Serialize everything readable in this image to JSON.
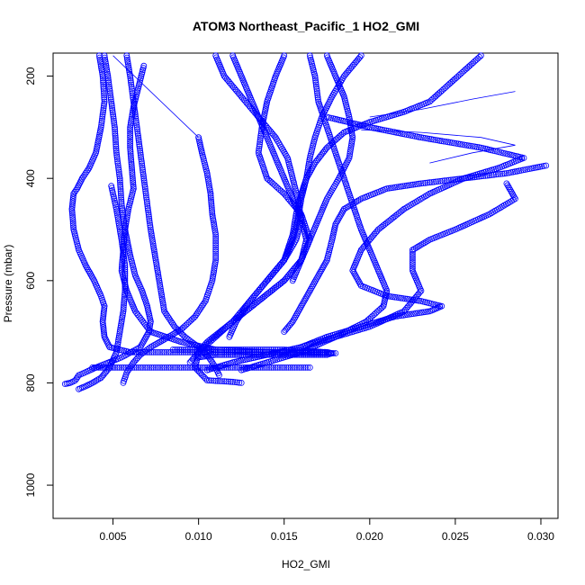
{
  "chart_data": {
    "type": "scatter",
    "title": "ATOM3 Northeast_Pacific_1 HO2_GMI",
    "xlabel": "HO2_GMI",
    "ylabel": "Pressure (mbar)",
    "xlim": [
      0.0015,
      0.031
    ],
    "ylim": [
      1065,
      155
    ],
    "y_reversed": true,
    "x_ticks": [
      {
        "value": 0.005,
        "label": "0.005"
      },
      {
        "value": 0.01,
        "label": "0.010"
      },
      {
        "value": 0.015,
        "label": "0.015"
      },
      {
        "value": 0.02,
        "label": "0.020"
      },
      {
        "value": 0.025,
        "label": "0.025"
      },
      {
        "value": 0.03,
        "label": "0.030"
      }
    ],
    "y_ticks": [
      {
        "value": 200,
        "label": "200"
      },
      {
        "value": 400,
        "label": "400"
      },
      {
        "value": 600,
        "label": "600"
      },
      {
        "value": 800,
        "label": "800"
      },
      {
        "value": 1000,
        "label": "1000"
      }
    ],
    "marker": "open-circle",
    "color": "#0000ff",
    "grid": false,
    "series": [
      {
        "x": [
          0.0042,
          0.0044,
          0.0045,
          0.0043,
          0.004,
          0.0036,
          0.0032,
          0.0029,
          0.0027,
          0.0026,
          0.0027,
          0.003,
          0.0034,
          0.0039,
          0.0043,
          0.0045,
          0.0044,
          0.0045,
          0.0048,
          0.006,
          0.008,
          0.01,
          0.013,
          0.016,
          0.0175
        ],
        "y": [
          160,
          200,
          250,
          300,
          350,
          380,
          400,
          420,
          430,
          460,
          500,
          540,
          570,
          600,
          630,
          650,
          680,
          710,
          730,
          740,
          740,
          740,
          740,
          740,
          740
        ]
      },
      {
        "x": [
          0.0045,
          0.0047,
          0.0049,
          0.0051,
          0.0052,
          0.0054,
          0.0055,
          0.0057,
          0.006,
          0.0063,
          0.0067,
          0.007,
          0.0072,
          0.0071,
          0.0066,
          0.0055,
          0.004,
          0.003,
          0.0028,
          0.0025,
          0.0022
        ],
        "y": [
          160,
          200,
          250,
          300,
          350,
          400,
          450,
          500,
          550,
          590,
          620,
          650,
          680,
          700,
          730,
          750,
          770,
          785,
          795,
          800,
          802
        ]
      },
      {
        "x": [
          0.0068,
          0.0065,
          0.0062,
          0.006,
          0.006,
          0.0061,
          0.0062,
          0.0059,
          0.0057,
          0.0056,
          0.0055,
          0.0058,
          0.0063,
          0.0072,
          0.009,
          0.011,
          0.014,
          0.0165,
          0.018
        ],
        "y": [
          180,
          220,
          260,
          300,
          340,
          380,
          420,
          460,
          500,
          540,
          580,
          620,
          660,
          700,
          720,
          735,
          740,
          742,
          742
        ]
      },
      {
        "x": [
          0.0049,
          0.0052,
          0.0055,
          0.0057,
          0.0057,
          0.0056,
          0.0054,
          0.0052,
          0.0048,
          0.0043,
          0.0038,
          0.0033,
          0.003
        ],
        "y": [
          415,
          460,
          520,
          570,
          620,
          660,
          700,
          740,
          770,
          790,
          800,
          808,
          812
        ]
      },
      {
        "x": [
          0.0058,
          0.006,
          0.0062,
          0.0064,
          0.0066,
          0.0068,
          0.007,
          0.0072,
          0.0074,
          0.0076,
          0.0078,
          0.008,
          0.0086,
          0.0092,
          0.01,
          0.0106,
          0.011,
          0.0112
        ],
        "y": [
          160,
          200,
          250,
          300,
          350,
          400,
          450,
          500,
          540,
          580,
          620,
          660,
          690,
          710,
          730,
          750,
          770,
          785
        ]
      },
      {
        "x": [
          0.01,
          0.0102,
          0.0105,
          0.0107,
          0.0108,
          0.011,
          0.011,
          0.0108,
          0.0104,
          0.0098,
          0.009,
          0.008,
          0.0072,
          0.0066,
          0.0062,
          0.0058,
          0.0056
        ],
        "y": [
          320,
          350,
          390,
          430,
          470,
          510,
          560,
          600,
          640,
          670,
          695,
          715,
          730,
          745,
          760,
          780,
          800
        ]
      },
      {
        "x": [
          0.015,
          0.0145,
          0.014,
          0.0137,
          0.0135,
          0.014,
          0.015,
          0.016,
          0.0165,
          0.016,
          0.015,
          0.0135,
          0.012,
          0.011,
          0.01,
          0.0098,
          0.0105,
          0.012,
          0.0125
        ],
        "y": [
          160,
          200,
          250,
          300,
          350,
          400,
          430,
          470,
          520,
          560,
          600,
          640,
          680,
          710,
          740,
          770,
          795,
          798,
          800
        ]
      },
      {
        "x": [
          0.012,
          0.0125,
          0.013,
          0.0135,
          0.014,
          0.0145,
          0.015,
          0.0155,
          0.016,
          0.0163,
          0.016,
          0.015,
          0.0135,
          0.012,
          0.0105,
          0.0095
        ],
        "y": [
          160,
          200,
          240,
          280,
          320,
          360,
          400,
          440,
          480,
          520,
          560,
          600,
          640,
          680,
          720,
          760
        ]
      },
      {
        "x": [
          0.0165,
          0.0168,
          0.017,
          0.0175,
          0.018,
          0.0185,
          0.019,
          0.0195,
          0.02,
          0.0205,
          0.021,
          0.0208,
          0.0198,
          0.018,
          0.016,
          0.014,
          0.0125
        ],
        "y": [
          160,
          200,
          250,
          300,
          350,
          400,
          450,
          500,
          540,
          580,
          620,
          650,
          680,
          710,
          740,
          760,
          775
        ]
      },
      {
        "x": [
          0.0265,
          0.0255,
          0.0245,
          0.0235,
          0.022,
          0.02,
          0.0185,
          0.0175,
          0.0168,
          0.0163,
          0.016,
          0.0157,
          0.0155,
          0.015,
          0.014,
          0.013,
          0.0122,
          0.0118
        ],
        "y": [
          160,
          190,
          220,
          250,
          270,
          290,
          310,
          340,
          370,
          400,
          430,
          470,
          510,
          560,
          600,
          640,
          680,
          710
        ]
      },
      {
        "x": [
          0.0175,
          0.02,
          0.023,
          0.0265,
          0.029,
          0.0275,
          0.0255,
          0.0235,
          0.022,
          0.0205,
          0.0195,
          0.019,
          0.0195,
          0.021,
          0.023,
          0.0242,
          0.0235,
          0.0215,
          0.0195,
          0.0175,
          0.016
        ],
        "y": [
          280,
          300,
          320,
          340,
          360,
          380,
          400,
          430,
          460,
          500,
          540,
          580,
          610,
          630,
          640,
          650,
          660,
          670,
          690,
          710,
          730
        ]
      },
      {
        "x": [
          0.0303,
          0.028,
          0.0255,
          0.023,
          0.021,
          0.0195,
          0.0185,
          0.018,
          0.0178,
          0.0175,
          0.017,
          0.0165,
          0.016,
          0.0155,
          0.015
        ],
        "y": [
          375,
          390,
          400,
          410,
          420,
          440,
          460,
          490,
          520,
          560,
          590,
          620,
          650,
          680,
          700
        ]
      },
      {
        "x": [
          0.028,
          0.0285,
          0.027,
          0.025,
          0.0235,
          0.0225,
          0.0225,
          0.023,
          0.022,
          0.02,
          0.018,
          0.016,
          0.014,
          0.012,
          0.0105
        ],
        "y": [
          410,
          440,
          470,
          500,
          520,
          540,
          580,
          620,
          660,
          690,
          710,
          730,
          745,
          760,
          775
        ]
      },
      {
        "x": [
          0.0195,
          0.0185,
          0.0178,
          0.0172,
          0.0168,
          0.0165,
          0.0163,
          0.016,
          0.0158,
          0.0155,
          0.015,
          0.014,
          0.013,
          0.012
        ],
        "y": [
          160,
          200,
          240,
          280,
          320,
          360,
          400,
          440,
          480,
          520,
          560,
          600,
          640,
          680
        ]
      },
      {
        "x": [
          0.011,
          0.0115,
          0.0125,
          0.0135,
          0.0145,
          0.0152,
          0.0155,
          0.0158,
          0.016,
          0.0157,
          0.015,
          0.014
        ],
        "y": [
          160,
          200,
          240,
          280,
          320,
          360,
          400,
          440,
          480,
          520,
          560,
          600
        ]
      },
      {
        "x": [
          0.0175,
          0.018,
          0.0185,
          0.0188,
          0.019,
          0.0188,
          0.0182,
          0.0175,
          0.017,
          0.0165,
          0.016,
          0.0155
        ],
        "y": [
          160,
          200,
          240,
          280,
          320,
          360,
          400,
          440,
          480,
          520,
          560,
          600
        ]
      },
      {
        "x": [
          0.01,
          0.011,
          0.0125,
          0.014,
          0.0155,
          0.0165,
          0.0175,
          0.0178,
          0.0175,
          0.0165,
          0.015,
          0.013,
          0.011,
          0.0095,
          0.0085
        ],
        "y": [
          750,
          745,
          745,
          745,
          745,
          745,
          745,
          742,
          740,
          738,
          735,
          735,
          735,
          735,
          735
        ]
      },
      {
        "x": [
          0.0038,
          0.005,
          0.007,
          0.009,
          0.011,
          0.013,
          0.015,
          0.0165
        ],
        "y": [
          770,
          770,
          770,
          770,
          770,
          770,
          770,
          770
        ]
      }
    ],
    "line_segments": [
      {
        "x": [
          0.005,
          0.01
        ],
        "y": [
          160,
          320
        ]
      },
      {
        "x": [
          0.0195,
          0.023,
          0.0265,
          0.0285,
          0.026,
          0.0235
        ],
        "y": [
          305,
          310,
          320,
          335,
          350,
          370
        ]
      },
      {
        "x": [
          0.02,
          0.023,
          0.026,
          0.0285
        ],
        "y": [
          280,
          265,
          245,
          230
        ]
      }
    ]
  }
}
